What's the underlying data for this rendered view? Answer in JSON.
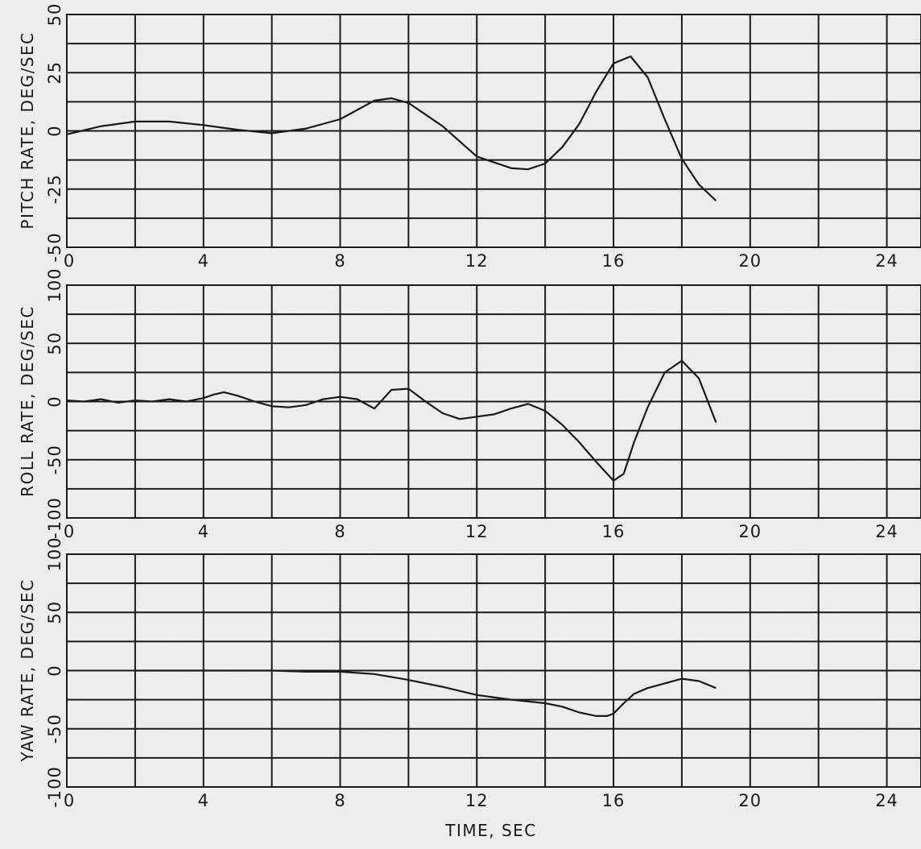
{
  "chart_data": [
    {
      "type": "line",
      "panel": "top",
      "ylabel": "PITCH RATE, DEG/SEC",
      "xlabel": "",
      "xlim": [
        0,
        25
      ],
      "ylim": [
        -50,
        50
      ],
      "xticks": [
        0,
        4,
        8,
        12,
        16,
        20,
        24
      ],
      "xtick_labels": [
        "0",
        "4",
        "8",
        "12",
        "16",
        "20",
        "24"
      ],
      "yticks": [
        -50,
        -25,
        0,
        25,
        50
      ],
      "ytick_labels": [
        "-50",
        "-25",
        "0",
        "25",
        "50"
      ],
      "x_grid_step": 2,
      "y_grid_step": 12.5,
      "grid": true,
      "series": [
        {
          "x": [
            0,
            1,
            2,
            3,
            4,
            5,
            6,
            7,
            8,
            8.5,
            9,
            9.5,
            10,
            11,
            12,
            13,
            13.5,
            14,
            14.5,
            15,
            15.5,
            16,
            16.5,
            17,
            17.5,
            18,
            18.5,
            19
          ],
          "y": [
            -1.5,
            2,
            4,
            4,
            2.5,
            0.5,
            -1,
            1,
            5,
            9,
            13,
            14,
            12,
            2,
            -11,
            -16,
            -16.5,
            -14,
            -7,
            3,
            17,
            29,
            32,
            23,
            5,
            -12,
            -23,
            -30
          ]
        }
      ]
    },
    {
      "type": "line",
      "panel": "middle",
      "ylabel": "ROLL RATE, DEG/SEC",
      "xlabel": "",
      "xlim": [
        0,
        25
      ],
      "ylim": [
        -100,
        100
      ],
      "xticks": [
        0,
        4,
        8,
        12,
        16,
        20,
        24
      ],
      "xtick_labels": [
        "0",
        "4",
        "8",
        "12",
        "16",
        "20",
        "24"
      ],
      "yticks": [
        -100,
        -50,
        0,
        50,
        100
      ],
      "ytick_labels": [
        "-100",
        "-50",
        "0",
        "50",
        "100"
      ],
      "x_grid_step": 2,
      "y_grid_step": 25,
      "grid": true,
      "series": [
        {
          "x": [
            0,
            0.5,
            1,
            1.5,
            2,
            2.5,
            3,
            3.5,
            4,
            4.3,
            4.6,
            5,
            5.5,
            6,
            6.5,
            7,
            7.5,
            8,
            8.5,
            9,
            9.5,
            10,
            10.5,
            11,
            11.5,
            12,
            12.5,
            13,
            13.5,
            14,
            14.5,
            15,
            15.5,
            16,
            16.3,
            16.6,
            17,
            17.5,
            18,
            18.5,
            19
          ],
          "y": [
            1,
            0,
            2,
            -1,
            1,
            0,
            2,
            0,
            3,
            6,
            8,
            5,
            0,
            -4,
            -5,
            -3,
            2,
            4,
            2,
            -6,
            10,
            11,
            0,
            -10,
            -15,
            -13,
            -11,
            -6,
            -2,
            -8,
            -20,
            -35,
            -52,
            -68,
            -62,
            -35,
            -5,
            25,
            35,
            20,
            -18
          ]
        }
      ]
    },
    {
      "type": "line",
      "panel": "bottom",
      "ylabel": "YAW RATE, DEG/SEC",
      "xlabel": "TIME, SEC",
      "xlim": [
        0,
        25
      ],
      "ylim": [
        -100,
        100
      ],
      "xticks": [
        0,
        4,
        8,
        12,
        16,
        20,
        24
      ],
      "xtick_labels": [
        "0",
        "4",
        "8",
        "12",
        "16",
        "20",
        "24"
      ],
      "yticks": [
        -100,
        -50,
        0,
        50,
        100
      ],
      "ytick_labels": [
        "-100",
        "-50",
        "0",
        "50",
        "100"
      ],
      "x_grid_step": 2,
      "y_grid_step": 25,
      "grid": true,
      "series": [
        {
          "x": [
            2,
            3,
            4,
            5,
            6,
            7,
            8,
            9,
            10,
            11,
            12,
            13,
            14,
            14.5,
            15,
            15.5,
            15.8,
            16,
            16.3,
            16.6,
            17,
            17.5,
            18,
            18.5,
            19
          ],
          "y": [
            0,
            0,
            0,
            0,
            0,
            -1,
            -1,
            -3,
            -8,
            -14,
            -21,
            -25,
            -28,
            -31,
            -36,
            -39,
            -39,
            -37,
            -28,
            -20,
            -15,
            -11,
            -7,
            -9,
            -15
          ]
        }
      ]
    }
  ]
}
